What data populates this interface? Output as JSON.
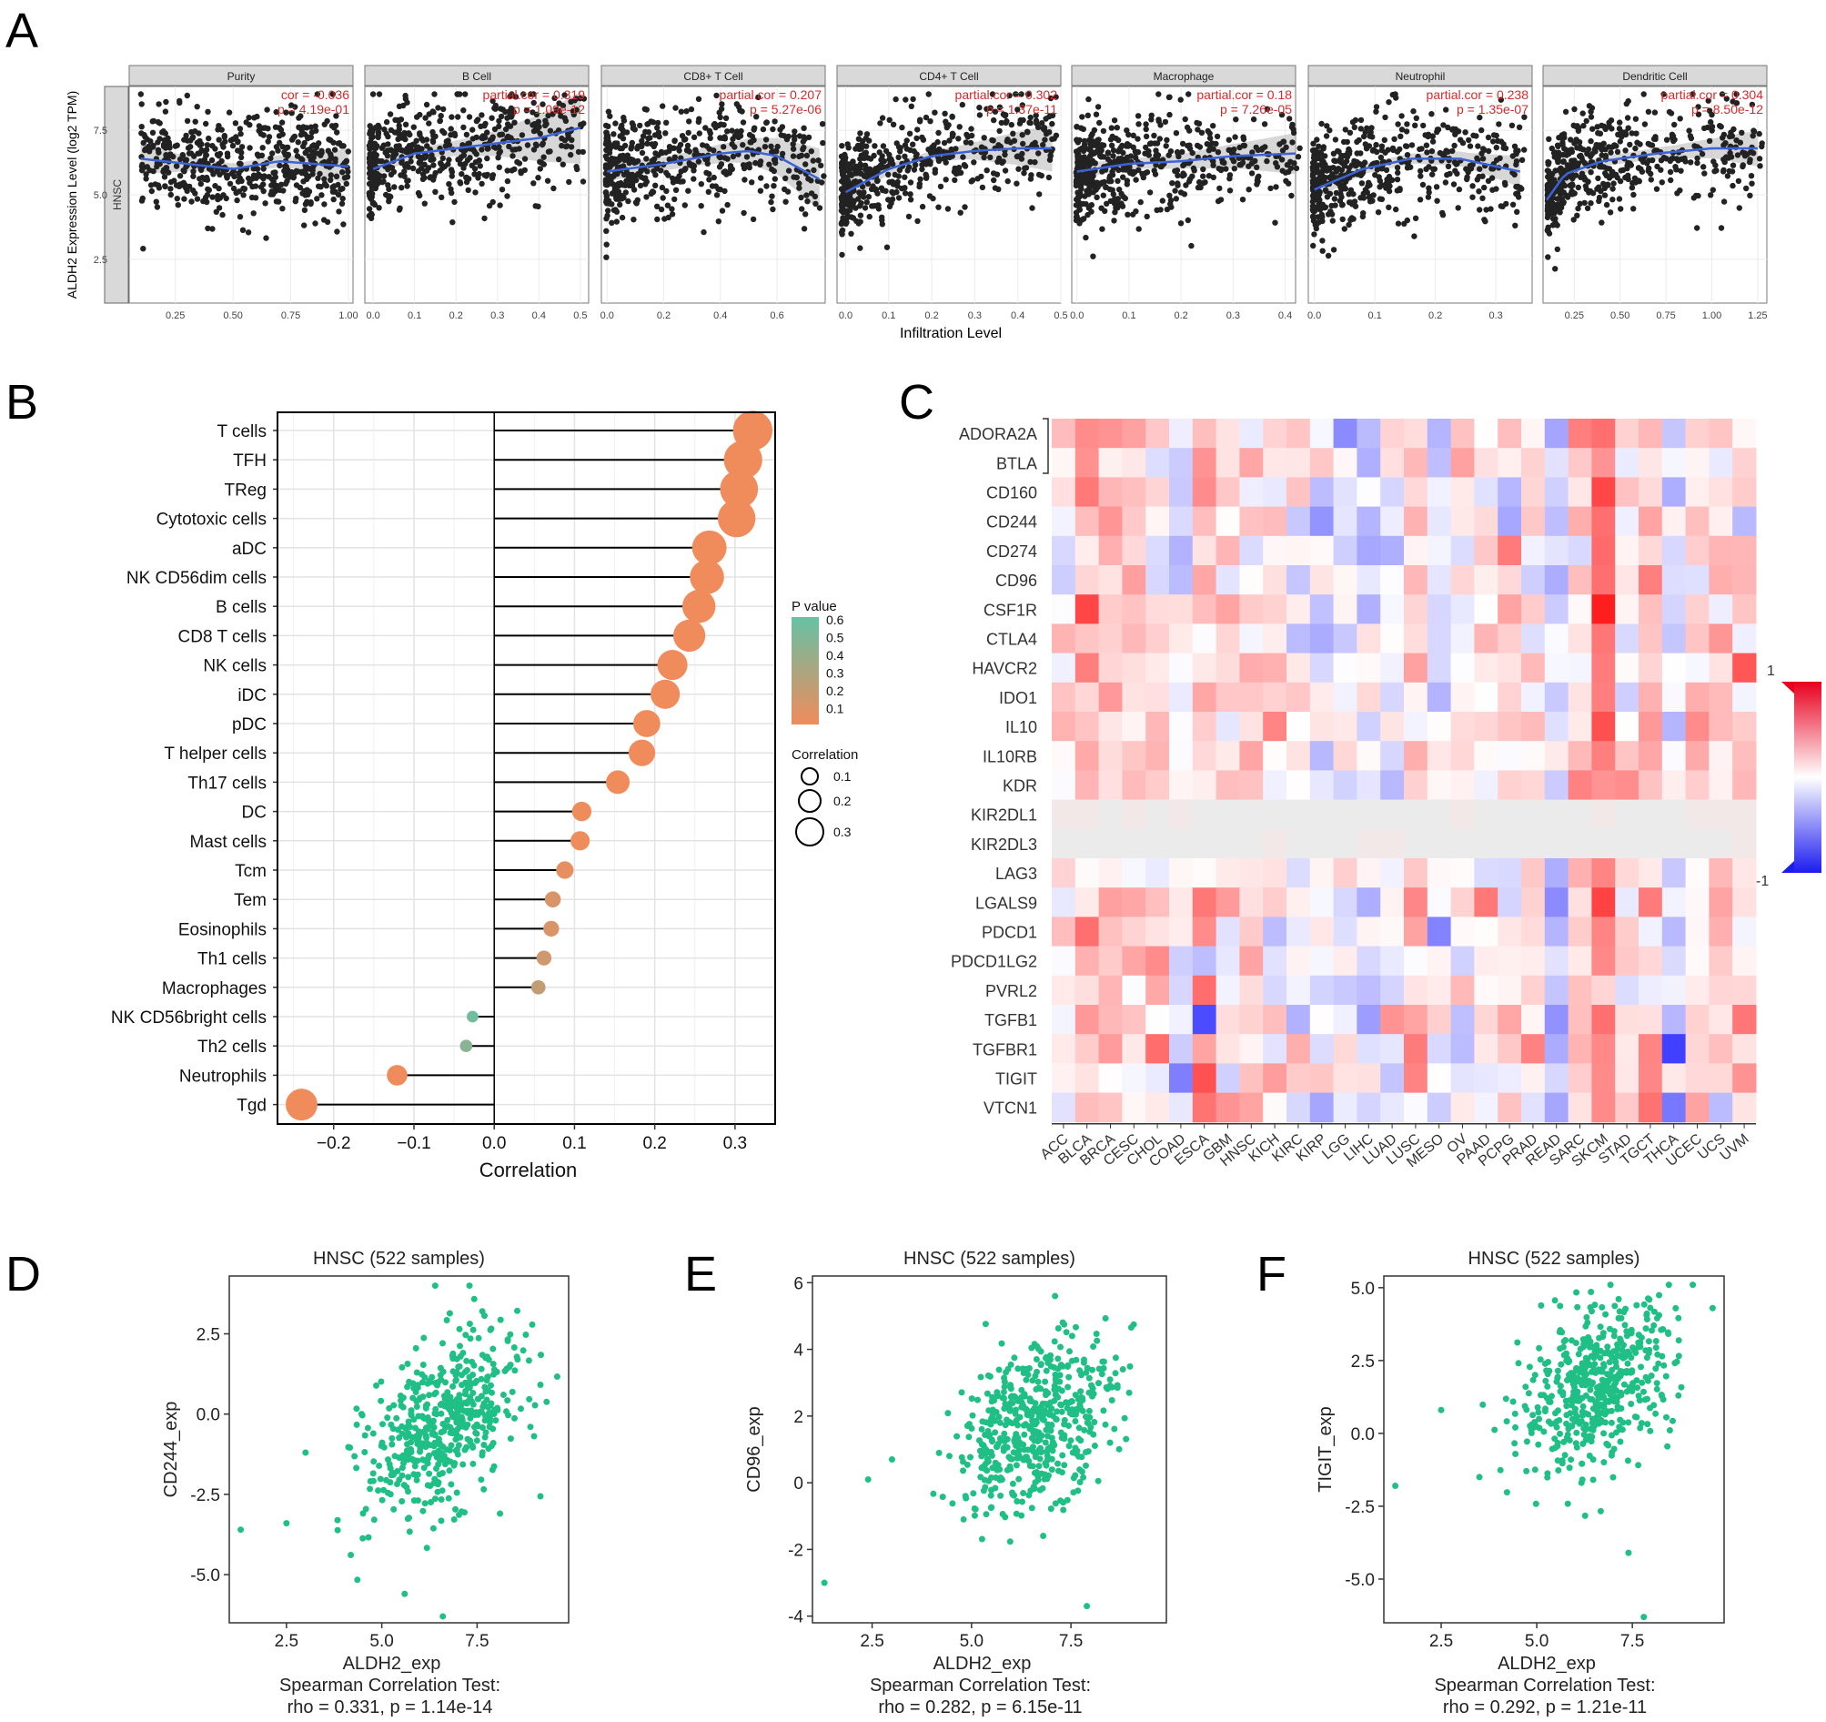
{
  "colors": {
    "green_dot": "#1fbf85",
    "orange_dot": "#f08b5b",
    "loess": "#3b63d6",
    "ci_band": "#bdbdbd",
    "red_text": "#d62a2a",
    "strip_bg": "#d9d9d9",
    "grid": "#ebebeb"
  },
  "panel_letters": [
    "A",
    "B",
    "C",
    "D",
    "E",
    "F"
  ],
  "chart_data": [
    {
      "id": "A",
      "type": "scatter",
      "ylabel": "ALDH2 Expression Level (log2 TPM)",
      "xlabel": "Infiltration Level",
      "row_label": "HNSC",
      "y_ticks": [
        "2.5",
        "5.0",
        "7.5"
      ],
      "ylim": [
        0.8,
        9.2
      ],
      "facets": [
        {
          "name": "Purity",
          "stat_line1": "cor = -0.036",
          "stat_line2": "p = 4.19e-01",
          "xlim": [
            0.05,
            1.02
          ],
          "ticks": [
            "0.25",
            "0.50",
            "0.75",
            "1.00"
          ],
          "tick_values": [
            0.25,
            0.5,
            0.75,
            1.0
          ],
          "curve": [
            [
              0.1,
              6.4
            ],
            [
              0.3,
              6.2
            ],
            [
              0.5,
              6.0
            ],
            [
              0.7,
              6.3
            ],
            [
              1.0,
              6.1
            ]
          ],
          "band": [
            0.6,
            0.25,
            0.2,
            0.25,
            0.7
          ]
        },
        {
          "name": "B Cell",
          "stat_line1": "partial.cor = 0.319",
          "stat_line2": "p = 1.09e-12",
          "xlim": [
            -0.02,
            0.52
          ],
          "ticks": [
            "0.0",
            "0.1",
            "0.2",
            "0.3",
            "0.4",
            "0.5"
          ],
          "tick_values": [
            0,
            0.1,
            0.2,
            0.3,
            0.4,
            0.5
          ],
          "curve": [
            [
              0.0,
              6.0
            ],
            [
              0.1,
              6.6
            ],
            [
              0.2,
              6.8
            ],
            [
              0.3,
              7.0
            ],
            [
              0.4,
              7.2
            ],
            [
              0.5,
              7.6
            ]
          ],
          "band": [
            0.3,
            0.2,
            0.3,
            0.5,
            0.9,
            1.4
          ]
        },
        {
          "name": "CD8+ T Cell",
          "stat_line1": "partial.cor = 0.207",
          "stat_line2": "p = 5.27e-06",
          "xlim": [
            -0.02,
            0.77
          ],
          "ticks": [
            "0.0",
            "0.2",
            "0.4",
            "0.6"
          ],
          "tick_values": [
            0,
            0.2,
            0.4,
            0.6
          ],
          "curve": [
            [
              0.0,
              5.9
            ],
            [
              0.2,
              6.2
            ],
            [
              0.4,
              6.6
            ],
            [
              0.5,
              6.7
            ],
            [
              0.6,
              6.5
            ],
            [
              0.75,
              5.6
            ]
          ],
          "band": [
            0.4,
            0.25,
            0.3,
            0.4,
            0.7,
            1.2
          ]
        },
        {
          "name": "CD4+ T Cell",
          "stat_line1": "partial.cor = 0.302",
          "stat_line2": "p = 1.37e-11",
          "xlim": [
            -0.02,
            0.5
          ],
          "ticks": [
            "0.0",
            "0.1",
            "0.2",
            "0.3",
            "0.4",
            "0.5"
          ],
          "tick_values": [
            0,
            0.1,
            0.2,
            0.3,
            0.4,
            0.5
          ],
          "curve": [
            [
              0.0,
              5.1
            ],
            [
              0.1,
              6.0
            ],
            [
              0.2,
              6.5
            ],
            [
              0.3,
              6.7
            ],
            [
              0.4,
              6.8
            ],
            [
              0.48,
              6.8
            ]
          ],
          "band": [
            0.5,
            0.2,
            0.2,
            0.3,
            0.6,
            0.9
          ]
        },
        {
          "name": "Macrophage",
          "stat_line1": "partial.cor = 0.18",
          "stat_line2": "p = 7.26e-05",
          "xlim": [
            -0.01,
            0.42
          ],
          "ticks": [
            "0.0",
            "0.1",
            "0.2",
            "0.3",
            "0.4"
          ],
          "tick_values": [
            0,
            0.1,
            0.2,
            0.3,
            0.4
          ],
          "curve": [
            [
              0.0,
              5.9
            ],
            [
              0.1,
              6.2
            ],
            [
              0.2,
              6.3
            ],
            [
              0.3,
              6.5
            ],
            [
              0.42,
              6.6
            ]
          ],
          "band": [
            0.3,
            0.2,
            0.3,
            0.5,
            0.8
          ]
        },
        {
          "name": "Neutrophil",
          "stat_line1": "partial.cor = 0.238",
          "stat_line2": "p = 1.35e-07",
          "xlim": [
            -0.01,
            0.36
          ],
          "ticks": [
            "0.0",
            "0.1",
            "0.2",
            "0.3"
          ],
          "tick_values": [
            0,
            0.1,
            0.2,
            0.3
          ],
          "curve": [
            [
              0.0,
              5.2
            ],
            [
              0.08,
              6.0
            ],
            [
              0.16,
              6.4
            ],
            [
              0.24,
              6.4
            ],
            [
              0.34,
              5.9
            ]
          ],
          "band": [
            0.4,
            0.2,
            0.2,
            0.3,
            0.6
          ]
        },
        {
          "name": "Dendritic Cell",
          "stat_line1": "partial.cor = 0.304",
          "stat_line2": "p = 8.50e-12",
          "xlim": [
            0.08,
            1.3
          ],
          "ticks": [
            "0.25",
            "0.50",
            "0.75",
            "1.00",
            "1.25"
          ],
          "tick_values": [
            0.25,
            0.5,
            0.75,
            1.0,
            1.25
          ],
          "curve": [
            [
              0.1,
              4.8
            ],
            [
              0.2,
              5.8
            ],
            [
              0.4,
              6.3
            ],
            [
              0.7,
              6.6
            ],
            [
              1.0,
              6.8
            ],
            [
              1.25,
              6.8
            ]
          ],
          "band": [
            0.6,
            0.2,
            0.2,
            0.25,
            0.4,
            0.7
          ]
        }
      ]
    },
    {
      "id": "B",
      "type": "scatter",
      "subtype": "lollipop",
      "xlabel": "Correlation",
      "xlim": [
        -0.27,
        0.35
      ],
      "x_ticks": [
        -0.2,
        -0.1,
        0.0,
        0.1,
        0.2,
        0.3
      ],
      "x_tick_labels": [
        "−0.2",
        "−0.1",
        "0.0",
        "0.1",
        "0.2",
        "0.3"
      ],
      "categories": [
        "T cells",
        "TFH",
        "TReg",
        "Cytotoxic cells",
        "aDC",
        "NK CD56dim cells",
        "B cells",
        "CD8 T cells",
        "NK cells",
        "iDC",
        "pDC",
        "T helper cells",
        "Th17 cells",
        "DC",
        "Mast cells",
        "Tcm",
        "Tem",
        "Eosinophils",
        "Th1 cells",
        "Macrophages",
        "NK CD56bright cells",
        "Th2 cells",
        "Neutrophils",
        "Tgd"
      ],
      "values": [
        0.322,
        0.31,
        0.305,
        0.302,
        0.268,
        0.265,
        0.255,
        0.243,
        0.222,
        0.213,
        0.19,
        0.184,
        0.154,
        0.109,
        0.107,
        0.088,
        0.073,
        0.071,
        0.062,
        0.055,
        -0.027,
        -0.035,
        -0.121,
        -0.24
      ],
      "p_values": [
        0.0,
        0.0,
        0.0,
        0.0,
        0.0,
        0.0,
        0.0,
        0.0,
        0.0,
        0.0,
        0.0,
        0.0,
        0.0,
        0.01,
        0.01,
        0.05,
        0.1,
        0.1,
        0.15,
        0.2,
        0.55,
        0.45,
        0.01,
        0.0
      ],
      "legend_p_title": "P value",
      "legend_p_ticks": [
        "0.6",
        "0.5",
        "0.4",
        "0.3",
        "0.2",
        "0.1"
      ],
      "legend_size_title": "Correlation",
      "legend_size_values": [
        "0.1",
        "0.2",
        "0.3"
      ]
    },
    {
      "id": "C",
      "type": "heatmap",
      "rows": [
        "ADORA2A",
        "BTLA",
        "CD160",
        "CD244",
        "CD274",
        "CD96",
        "CSF1R",
        "CTLA4",
        "HAVCR2",
        "IDO1",
        "IL10",
        "IL10RB",
        "KDR",
        "KIR2DL1",
        "KIR2DL3",
        "LAG3",
        "LGALS9",
        "PDCD1",
        "PDCD1LG2",
        "PVRL2",
        "TGFB1",
        "TGFBR1",
        "TIGIT",
        "VTCN1"
      ],
      "columns": [
        "ACC",
        "BLCA",
        "BRCA",
        "CESC",
        "CHOL",
        "COAD",
        "ESCA",
        "GBM",
        "HNSC",
        "KICH",
        "KIRC",
        "KIRP",
        "LGG",
        "LIHC",
        "LUAD",
        "LUSC",
        "MESO",
        "OV",
        "PAAD",
        "PCPG",
        "PRAD",
        "READ",
        "SARC",
        "SKCM",
        "STAD",
        "TGCT",
        "THCA",
        "UCEC",
        "UCS",
        "UVM"
      ],
      "legend_max": "1",
      "legend_min": "-1"
    },
    {
      "id": "D",
      "type": "scatter",
      "title": "HNSC (522 samples)",
      "xlabel": "ALDH2_exp",
      "ylabel": "CD244_exp",
      "stat_title": "Spearman Correlation Test:",
      "stat_text": "rho = 0.331, p = 1.14e-14",
      "x_ticks": [
        2.5,
        5.0,
        7.5
      ],
      "x_tick_labels": [
        "2.5",
        "5.0",
        "7.5"
      ],
      "xlim": [
        1.0,
        9.9
      ],
      "y_ticks": [
        -5.0,
        -2.5,
        0.0,
        2.5
      ],
      "y_tick_labels": [
        "-5.0",
        "-2.5",
        "0.0",
        "2.5"
      ],
      "ylim": [
        -6.5,
        4.3
      ],
      "n": 522,
      "x_mean": 6.6,
      "x_sd": 1.0,
      "y_mean": -0.4,
      "y_sd": 1.4,
      "rho": 0.331,
      "outliers": [
        [
          1.3,
          -3.6
        ],
        [
          2.5,
          -3.4
        ],
        [
          5.6,
          -5.6
        ],
        [
          6.6,
          -6.3
        ],
        [
          6.4,
          4.0
        ],
        [
          7.3,
          4.0
        ],
        [
          3.0,
          -1.2
        ],
        [
          8.1,
          -3.1
        ]
      ]
    },
    {
      "id": "E",
      "type": "scatter",
      "title": "HNSC (522 samples)",
      "xlabel": "ALDH2_exp",
      "ylabel": "CD96_exp",
      "stat_title": "Spearman Correlation Test:",
      "stat_text": "rho = 0.282, p = 6.15e-11",
      "x_ticks": [
        2.5,
        5.0,
        7.5
      ],
      "x_tick_labels": [
        "2.5",
        "5.0",
        "7.5"
      ],
      "xlim": [
        1.0,
        9.9
      ],
      "y_ticks": [
        -4,
        -2,
        0,
        2,
        4,
        6
      ],
      "y_tick_labels": [
        "-4",
        "-2",
        "0",
        "2",
        "4",
        "6"
      ],
      "ylim": [
        -4.2,
        6.2
      ],
      "n": 522,
      "x_mean": 6.6,
      "x_sd": 1.0,
      "y_mean": 1.8,
      "y_sd": 1.3,
      "rho": 0.282,
      "outliers": [
        [
          1.3,
          -3.0
        ],
        [
          2.4,
          0.1
        ],
        [
          7.9,
          -3.7
        ],
        [
          7.1,
          5.6
        ],
        [
          3.0,
          0.7
        ],
        [
          4.8,
          -1.1
        ]
      ]
    },
    {
      "id": "F",
      "type": "scatter",
      "title": "HNSC (522 samples)",
      "xlabel": "ALDH2_exp",
      "ylabel": "TIGIT_exp",
      "stat_title": "Spearman Correlation Test:",
      "stat_text": "rho = 0.292, p = 1.21e-11",
      "x_ticks": [
        2.5,
        5.0,
        7.5
      ],
      "x_tick_labels": [
        "2.5",
        "5.0",
        "7.5"
      ],
      "xlim": [
        1.0,
        9.9
      ],
      "y_ticks": [
        -5.0,
        -2.5,
        0.0,
        2.5,
        5.0
      ],
      "y_tick_labels": [
        "-5.0",
        "-2.5",
        "0.0",
        "2.5",
        "5.0"
      ],
      "ylim": [
        -6.5,
        5.4
      ],
      "n": 522,
      "x_mean": 6.6,
      "x_sd": 1.0,
      "y_mean": 1.6,
      "y_sd": 1.4,
      "rho": 0.292,
      "outliers": [
        [
          1.3,
          -1.8
        ],
        [
          2.5,
          0.8
        ],
        [
          3.5,
          -1.5
        ],
        [
          7.4,
          -4.1
        ],
        [
          7.8,
          -6.3
        ],
        [
          9.6,
          4.3
        ]
      ]
    }
  ]
}
